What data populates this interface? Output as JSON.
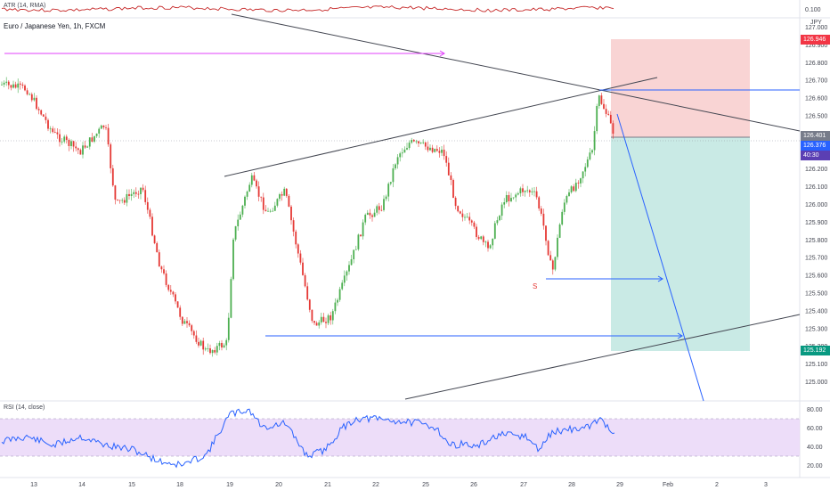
{
  "chart_data": {
    "type": "candlestick",
    "symbol_title": "Euro / Japanese Yen, 1h, FXCM",
    "currency": "JPY",
    "price_axis_ticks": [
      "127.000",
      "126.900",
      "126.800",
      "126.700",
      "126.600",
      "126.500",
      "126.400",
      "126.300",
      "126.200",
      "126.100",
      "126.000",
      "125.900",
      "125.800",
      "125.700",
      "125.600",
      "125.500",
      "125.400",
      "125.300",
      "125.200",
      "125.100",
      "125.000"
    ],
    "atr": {
      "title": "ATR (14, RMA)",
      "value_label": "0.100"
    },
    "rsi": {
      "title": "RSI (14, close)",
      "ticks": [
        "80.00",
        "60.00",
        "40.00",
        "20.00"
      ],
      "upper_band": 70,
      "lower_band": 30,
      "ylim": [
        10,
        90
      ]
    },
    "time_axis_ticks": [
      "13",
      "14",
      "15",
      "18",
      "19",
      "20",
      "21",
      "22",
      "25",
      "26",
      "27",
      "28",
      "29",
      "Feb",
      "2",
      "3"
    ],
    "price_tags": {
      "stop": {
        "label": "126.946",
        "color": "#f23645"
      },
      "entry": {
        "label": "126.401",
        "color": "#777c8a"
      },
      "last": {
        "label": "126.376",
        "color": "#2962ff"
      },
      "countdown": {
        "label": "40:30",
        "color": "#5b3fb3"
      },
      "target": {
        "label": "125.192",
        "color": "#089981"
      }
    },
    "signal_label": "S",
    "colors": {
      "up": "#26a69a",
      "down": "#ef5350",
      "up_candle": "#4caf50",
      "down_candle": "#e53935",
      "rsi_line": "#2962ff",
      "rsi_band": "#e9d5f8",
      "atr_line": "#c62828"
    }
  }
}
